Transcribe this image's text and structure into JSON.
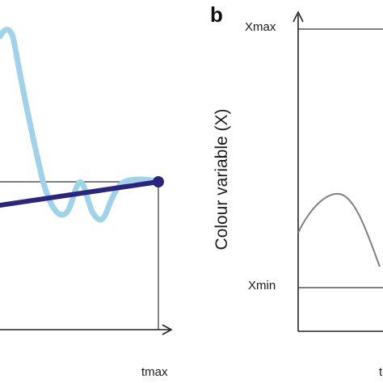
{
  "panel_b": {
    "letter": "b",
    "y_axis_title": "Colour variable (X)",
    "x_max_label": "Xmax",
    "x_min_label": "Xmin",
    "t_label_partial": "t"
  },
  "panel_a": {
    "t_max_label": "tmax"
  },
  "colors": {
    "light_curve": "#9fd3ea",
    "dark_line": "#2c2580",
    "gray_curve": "#7f7f7f",
    "axis": "#222222",
    "guide": "#333333"
  }
}
